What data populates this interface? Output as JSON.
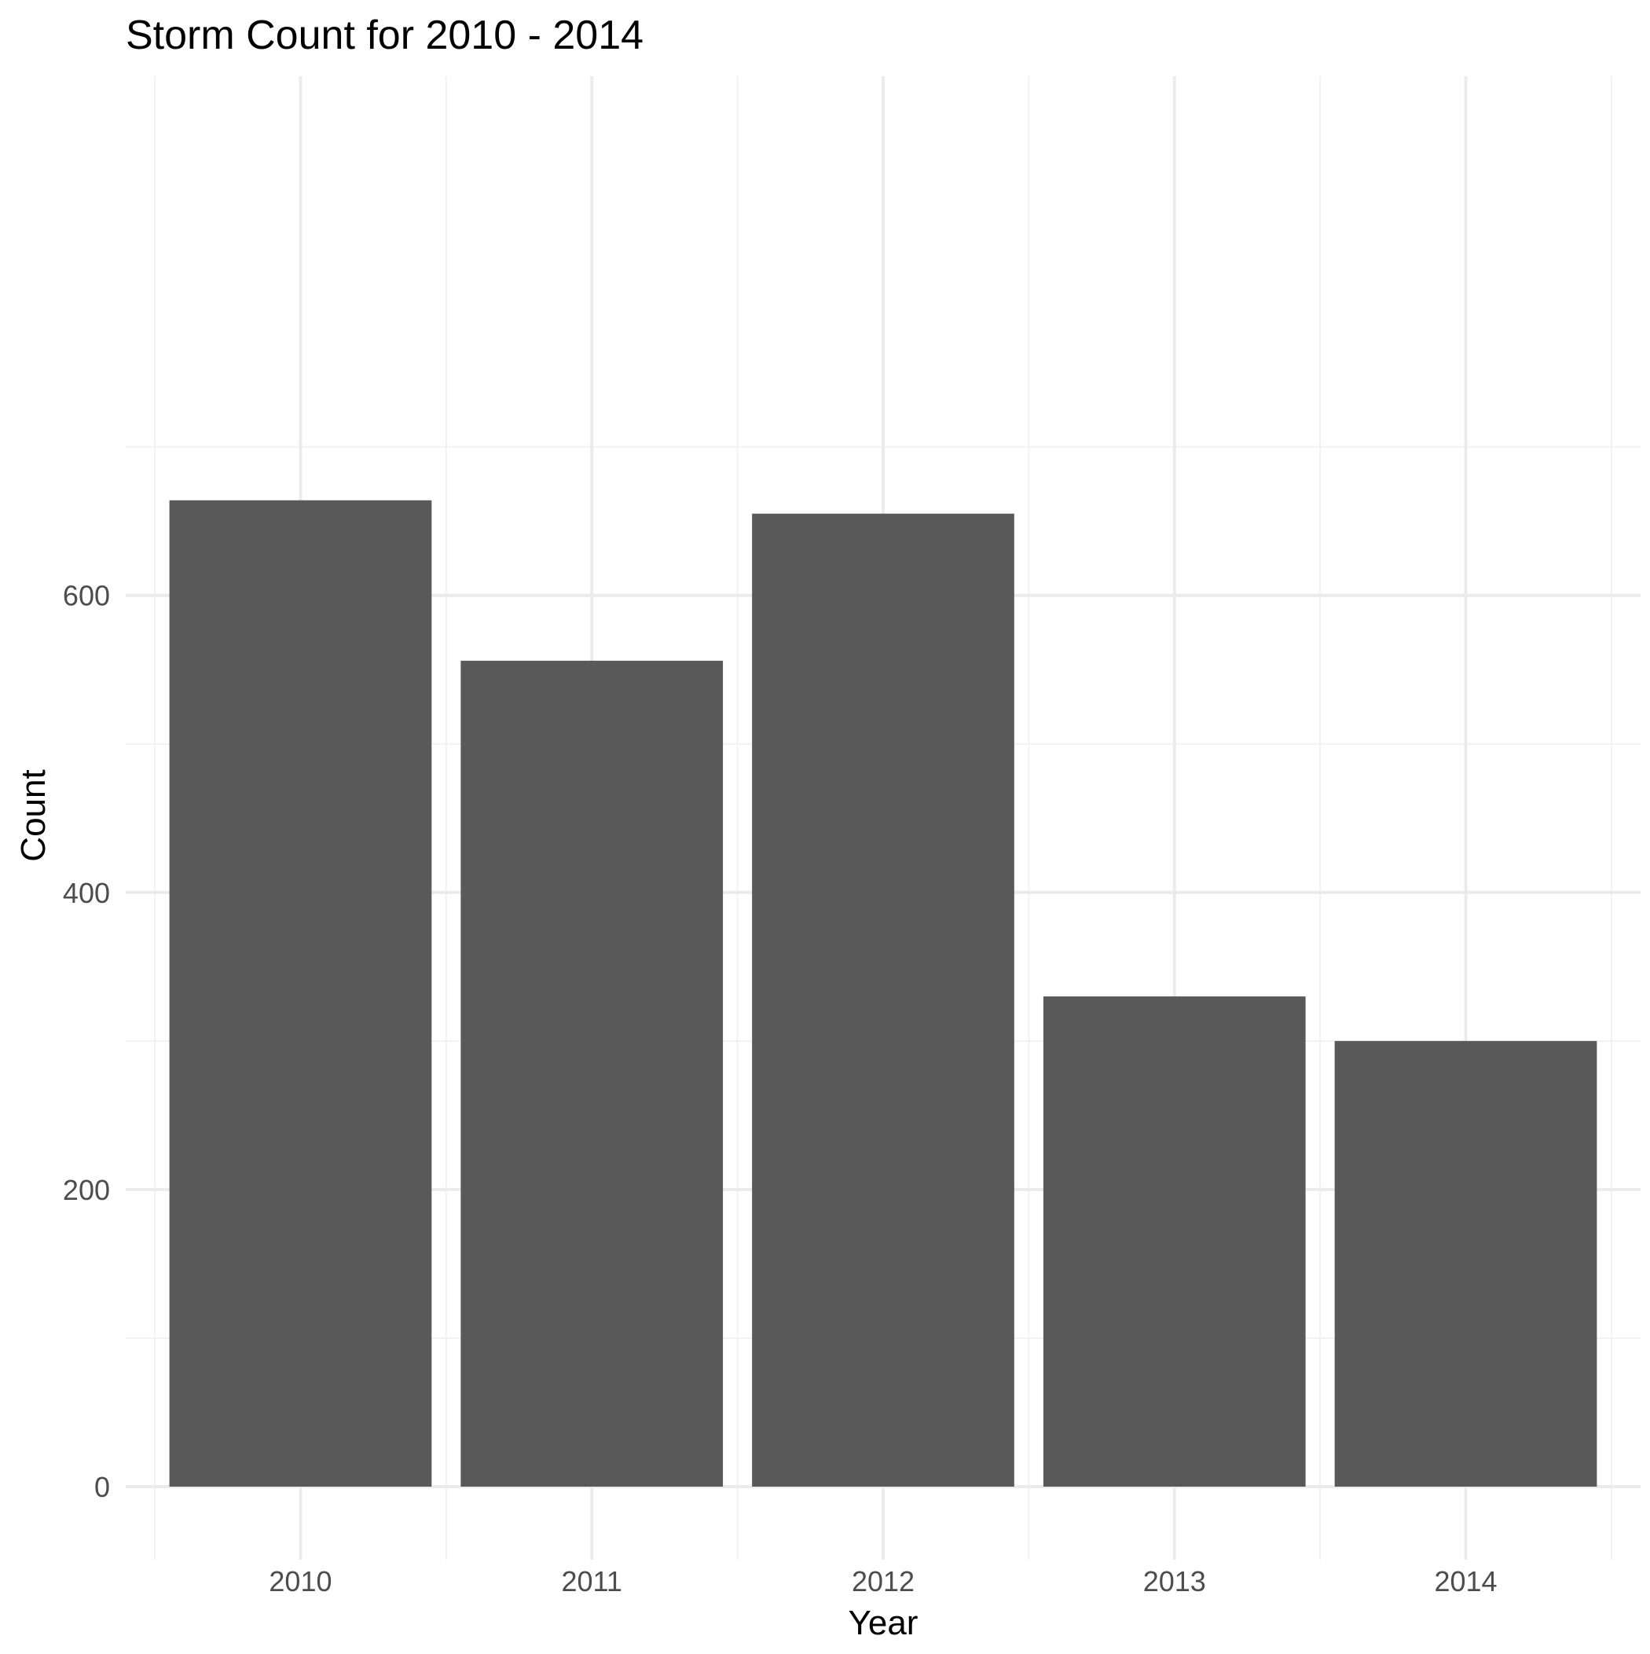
{
  "colors": {
    "bar_fill": "#595959",
    "background": "#ffffff",
    "grid_major": "#ebebeb",
    "grid_minor": "#f2f2f2",
    "tick_text": "#4d4d4d",
    "title_text": "#000000"
  },
  "chart_data": {
    "type": "bar",
    "title": "Storm Count for 2010 - 2014",
    "xlabel": "Year",
    "ylabel": "Count",
    "categories": [
      "2010",
      "2011",
      "2012",
      "2013",
      "2014"
    ],
    "values": [
      664,
      556,
      655,
      330,
      300
    ],
    "ylim": [
      0,
      700
    ],
    "yticks": [
      0,
      200,
      400,
      600
    ],
    "ytick_labels": [
      "0",
      "200",
      "400",
      "600"
    ],
    "grid": true,
    "legend": "none"
  }
}
